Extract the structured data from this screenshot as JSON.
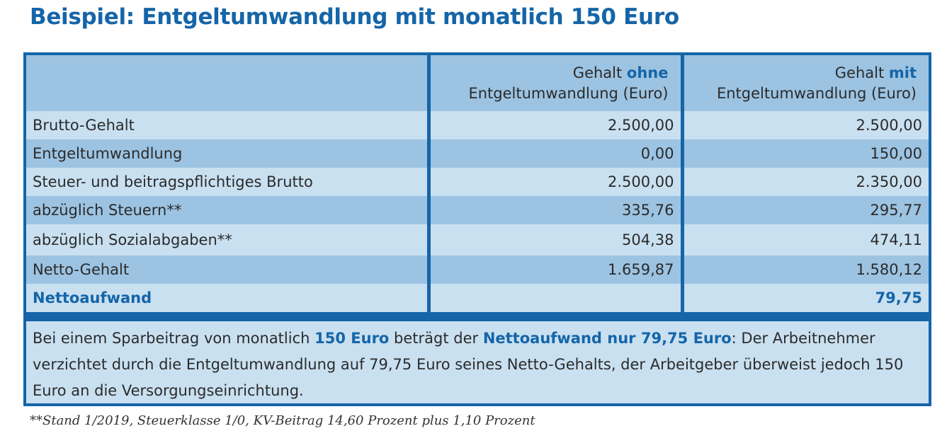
{
  "title": "Beispiel: Entgeltumwandlung mit monatlich 150 Euro",
  "table": {
    "header": {
      "col2_pre": "Gehalt ",
      "col2_accent": "ohne",
      "col2_line2": "Entgeltumwandlung (Euro)",
      "col3_pre": "Gehalt ",
      "col3_accent": "mit",
      "col3_line2": "Entgeltumwandlung (Euro)"
    },
    "rows": [
      {
        "label": "Brutto-Gehalt",
        "ohne": "2.500,00",
        "mit": "2.500,00"
      },
      {
        "label": "Entgeltumwandlung",
        "ohne": "0,00",
        "mit": "150,00"
      },
      {
        "label": "Steuer- und beitragspflichtiges Brutto",
        "ohne": "2.500,00",
        "mit": "2.350,00"
      },
      {
        "label": "abzüglich Steuern**",
        "ohne": "335,76",
        "mit": "295,77"
      },
      {
        "label": "abzüglich Sozialabgaben**",
        "ohne": "504,38",
        "mit": "474,11"
      },
      {
        "label": "Netto-Gehalt",
        "ohne": "1.659,87",
        "mit": "1.580,12"
      },
      {
        "label": "Nettoaufwand",
        "ohne": "",
        "mit": "79,75"
      }
    ]
  },
  "note": {
    "t1": "Bei einem Sparbeitrag von monatlich ",
    "b1": "150 Euro",
    "t2": " beträgt der ",
    "b2": "Nettoaufwand nur 79,75 Euro",
    "t3": ": Der Arbeitnehmer verzichtet durch die Entgeltumwandlung auf 79,75 Euro seines Netto-Gehalts, der Arbeitgeber überweist jedoch 150 Euro an die Versorgungseinrichtung."
  },
  "footnote": "**Stand 1/2019, Steuerklasse 1/0, KV-Beitrag 14,60 Prozent plus 1,10 Prozent",
  "colors": {
    "accent": "#1565a8",
    "row_light": "#c9e0f1",
    "row_dark": "#9cc3e2"
  }
}
